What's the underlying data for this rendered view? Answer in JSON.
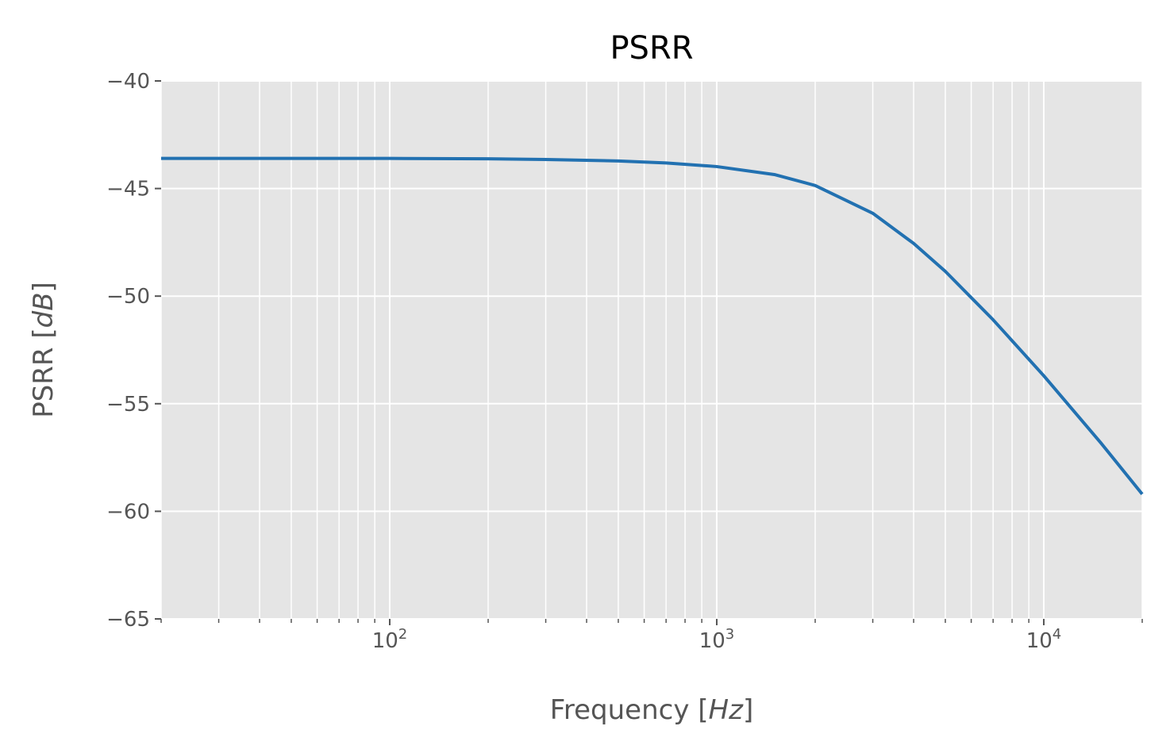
{
  "chart_data": {
    "type": "line",
    "title": "PSRR",
    "xlabel": {
      "text": "Frequency [",
      "unit": "Hz",
      "close": "]"
    },
    "ylabel": {
      "text": "PSRR [",
      "unit": "dB",
      "close": "]"
    },
    "xscale": "log",
    "xlim": [
      20,
      20000
    ],
    "ylim": [
      -65,
      -40
    ],
    "yticks": [
      -40,
      -45,
      -50,
      -55,
      -60,
      -65
    ],
    "ytick_labels": [
      "−40",
      "−45",
      "−50",
      "−55",
      "−60",
      "−65"
    ],
    "xticks_major": [
      {
        "value": 100,
        "base": "10",
        "exp": "2"
      },
      {
        "value": 1000,
        "base": "10",
        "exp": "3"
      },
      {
        "value": 10000,
        "base": "10",
        "exp": "4"
      }
    ],
    "grid": true,
    "background": "#e5e5e5",
    "grid_color": "#ffffff",
    "line_color": "#2271b1",
    "series": [
      {
        "x": [
          20,
          50,
          100,
          200,
          300,
          500,
          700,
          1000,
          1500,
          2000,
          3000,
          4000,
          5000,
          7000,
          10000,
          15000,
          20000
        ],
        "y": [
          -43.6,
          -43.6,
          -43.6,
          -43.62,
          -43.65,
          -43.72,
          -43.81,
          -43.98,
          -44.35,
          -44.86,
          -46.15,
          -47.55,
          -48.85,
          -51.1,
          -53.7,
          -56.85,
          -59.2
        ]
      }
    ]
  }
}
